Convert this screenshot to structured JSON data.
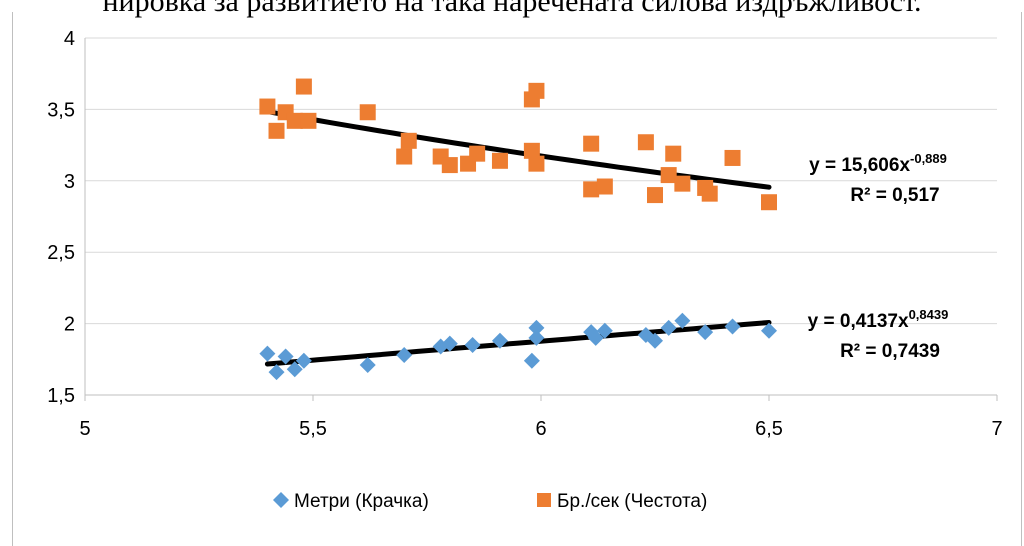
{
  "caption_fragment": "нировка за развитието на така наречената силова издръжливост.",
  "chart_data": {
    "type": "scatter",
    "title": "",
    "xlabel": "",
    "ylabel": "",
    "xlim": [
      5,
      7
    ],
    "ylim": [
      1.5,
      4
    ],
    "x_ticks": [
      "5",
      "5,5",
      "6",
      "6,5",
      "7"
    ],
    "y_ticks": [
      "1,5",
      "2",
      "2,5",
      "3",
      "3,5",
      "4"
    ],
    "grid": "horizontal",
    "legend_position": "bottom",
    "series": [
      {
        "name": "Метри (Крачка)",
        "color": "#5b9bd5",
        "marker": "diamond",
        "points": [
          [
            5.4,
            1.79
          ],
          [
            5.42,
            1.66
          ],
          [
            5.44,
            1.77
          ],
          [
            5.46,
            1.68
          ],
          [
            5.48,
            1.74
          ],
          [
            5.62,
            1.71
          ],
          [
            5.7,
            1.78
          ],
          [
            5.78,
            1.84
          ],
          [
            5.8,
            1.86
          ],
          [
            5.85,
            1.85
          ],
          [
            5.91,
            1.88
          ],
          [
            5.98,
            1.74
          ],
          [
            5.99,
            1.9
          ],
          [
            5.99,
            1.97
          ],
          [
            6.11,
            1.94
          ],
          [
            6.12,
            1.9
          ],
          [
            6.14,
            1.95
          ],
          [
            6.23,
            1.92
          ],
          [
            6.25,
            1.88
          ],
          [
            6.28,
            1.97
          ],
          [
            6.31,
            2.02
          ],
          [
            6.36,
            1.94
          ],
          [
            6.42,
            1.98
          ],
          [
            6.5,
            1.95
          ]
        ],
        "trendline": {
          "type": "power",
          "a": 0.4137,
          "b": 0.8439,
          "x_range": [
            5.4,
            6.5
          ],
          "equation": "y = 0,4137x",
          "exponent": "0,8439",
          "r2": "R² = 0,7439"
        }
      },
      {
        "name": "Бр./сек (Честота)",
        "color": "#ed7d31",
        "marker": "square",
        "points": [
          [
            5.4,
            3.52
          ],
          [
            5.42,
            3.35
          ],
          [
            5.44,
            3.48
          ],
          [
            5.46,
            3.42
          ],
          [
            5.48,
            3.66
          ],
          [
            5.49,
            3.42
          ],
          [
            5.62,
            3.48
          ],
          [
            5.7,
            3.17
          ],
          [
            5.71,
            3.28
          ],
          [
            5.78,
            3.17
          ],
          [
            5.8,
            3.11
          ],
          [
            5.84,
            3.12
          ],
          [
            5.86,
            3.19
          ],
          [
            5.91,
            3.14
          ],
          [
            5.98,
            3.57
          ],
          [
            5.99,
            3.63
          ],
          [
            5.98,
            3.21
          ],
          [
            5.99,
            3.12
          ],
          [
            6.11,
            3.26
          ],
          [
            6.11,
            2.94
          ],
          [
            6.14,
            2.96
          ],
          [
            6.23,
            3.27
          ],
          [
            6.25,
            2.9
          ],
          [
            6.28,
            3.04
          ],
          [
            6.29,
            3.19
          ],
          [
            6.31,
            2.98
          ],
          [
            6.36,
            2.95
          ],
          [
            6.37,
            2.91
          ],
          [
            6.42,
            3.16
          ],
          [
            6.5,
            2.85
          ]
        ],
        "trendline": {
          "type": "power",
          "a": 15.606,
          "b": -0.889,
          "x_range": [
            5.4,
            6.5
          ],
          "equation": "y = 15,606x",
          "exponent": "-0,889",
          "r2": "R² = 0,517"
        }
      }
    ]
  }
}
